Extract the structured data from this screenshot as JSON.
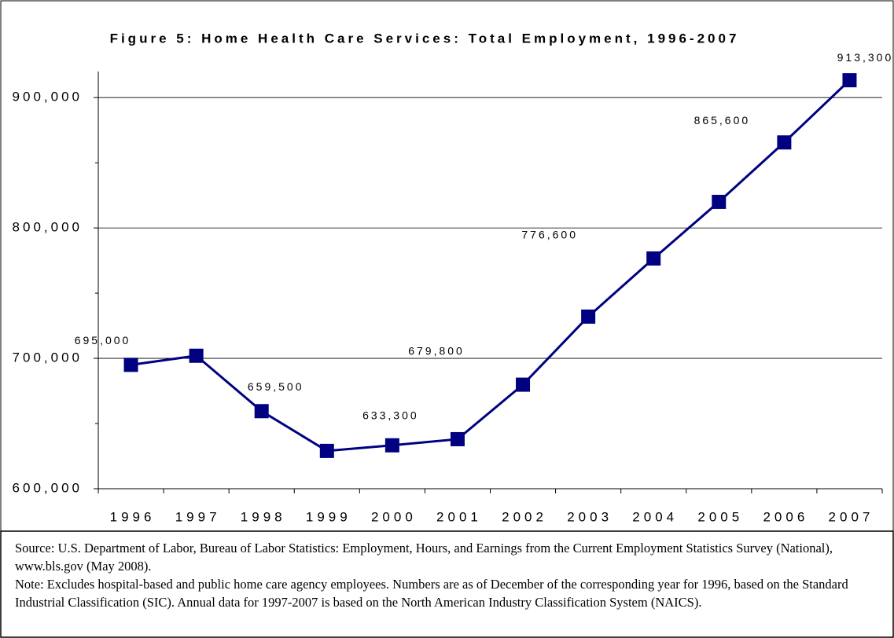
{
  "chart_data": {
    "type": "line",
    "title": "Figure 5: Home Health Care Services: Total Employment, 1996-2007",
    "categories": [
      "1996",
      "1997",
      "1998",
      "1999",
      "2000",
      "2001",
      "2002",
      "2003",
      "2004",
      "2005",
      "2006",
      "2007"
    ],
    "series": [
      {
        "color": "#000080",
        "values": [
          695000,
          702000,
          659500,
          629000,
          633300,
          638000,
          679800,
          732000,
          776600,
          820000,
          865600,
          913300
        ],
        "value_labels": [
          "695,000",
          null,
          "659,500",
          null,
          "633,300",
          null,
          "679,800",
          null,
          "776,600",
          null,
          "865,600",
          "913,300"
        ]
      }
    ],
    "ylim": [
      600000,
      920000
    ],
    "yticks": [
      {
        "value": 600000,
        "label": "600,000"
      },
      {
        "value": 700000,
        "label": "700,000"
      },
      {
        "value": 800000,
        "label": "800,000"
      },
      {
        "value": 900000,
        "label": "900,000"
      }
    ],
    "minor_yticks": [
      650000,
      750000,
      850000
    ],
    "grid": true,
    "source": "Source: U.S. Department of Labor, Bureau of Labor Statistics: Employment, Hours, and Earnings from the Current Employment Statistics Survey (National), www.bls.gov (May 2008).",
    "note": "Note: Excludes hospital-based and public home care agency employees. Numbers are as of December of the corresponding year for 1996, based on the Standard Industrial Classification (SIC). Annual data for 1997-2007 is based on the North American Industry Classification System (NAICS)."
  }
}
